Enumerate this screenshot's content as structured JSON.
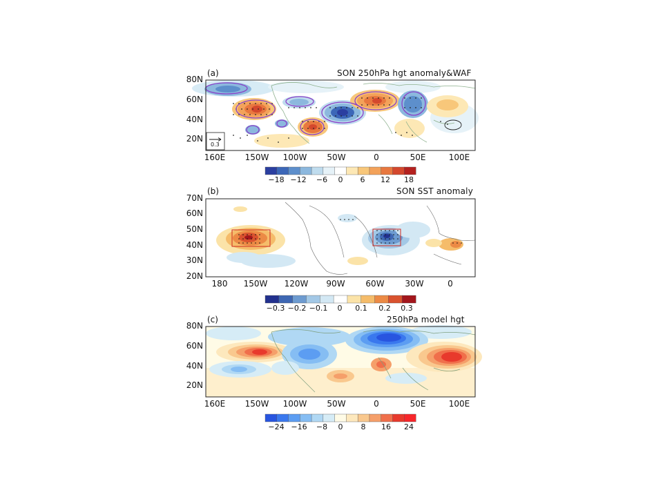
{
  "panel_a": {
    "letter": "(a)",
    "title": "SON 250hPa hgt anomaly&WAF",
    "y_ticks": [
      "80N",
      "60N",
      "40N",
      "20N"
    ],
    "x_ticks": [
      "160E",
      "150W",
      "100W",
      "50W",
      "0",
      "50E",
      "100E"
    ],
    "ref_vector_label": "0.3",
    "colorbar_labels": [
      "−18",
      "−12",
      "−6",
      "0",
      "6",
      "12",
      "18"
    ],
    "colors": [
      "#2b3fa0",
      "#3c67b8",
      "#5d8fcc",
      "#8cb8de",
      "#bfdcee",
      "#e6f2f8",
      "#ffffff",
      "#fde8b5",
      "#f8c77a",
      "#f3a25a",
      "#e8783f",
      "#d4482d",
      "#b4211f"
    ]
  },
  "panel_b": {
    "letter": "(b)",
    "title": "SON SST anomaly",
    "y_ticks": [
      "70N",
      "60N",
      "50N",
      "40N",
      "30N",
      "20N"
    ],
    "x_ticks": [
      "180",
      "150W",
      "120W",
      "90W",
      "60W",
      "30W",
      "0"
    ],
    "colorbar_labels": [
      "−0.3",
      "−0.2",
      "−0.1",
      "0",
      "0.1",
      "0.2",
      "0.3"
    ],
    "colors": [
      "#22318e",
      "#3e67b3",
      "#6d9bd0",
      "#a3c8e6",
      "#d3e8f4",
      "#ffffff",
      "#fbe3a8",
      "#f5bc6a",
      "#ec8a45",
      "#d9522e",
      "#a3161c"
    ]
  },
  "panel_c": {
    "letter": "(c)",
    "title": "250hPa model hgt",
    "y_ticks": [
      "80N",
      "60N",
      "40N",
      "20N"
    ],
    "x_ticks": [
      "160E",
      "150W",
      "100W",
      "50W",
      "0",
      "50E",
      "100E"
    ],
    "colorbar_labels": [
      "−24",
      "−16",
      "−8",
      "0",
      "8",
      "16",
      "24"
    ],
    "colors": [
      "#2855e0",
      "#3a78ee",
      "#5c9df2",
      "#85bdf3",
      "#b0d8f4",
      "#d6ecf6",
      "#fffbe6",
      "#fde8bd",
      "#f9c88e",
      "#f59f6a",
      "#f06f4b",
      "#e8392c",
      "#f7262b"
    ]
  }
}
